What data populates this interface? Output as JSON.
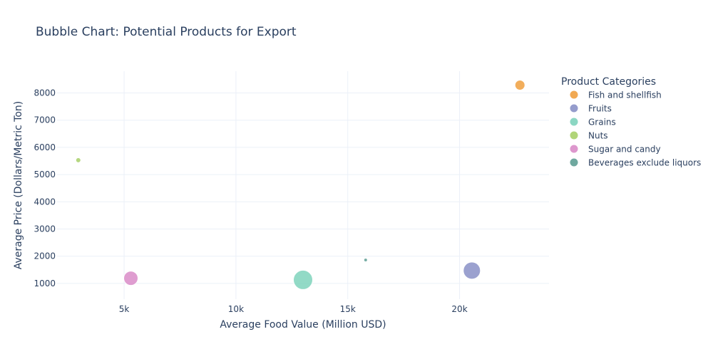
{
  "chart_data": {
    "type": "scatter",
    "title": "Bubble Chart: Potential Products for Export",
    "xlabel": "Average Food Value (Million USD)",
    "ylabel": "Average Price (Dollars/Metric Ton)",
    "xlim": [
      2000,
      24000
    ],
    "ylim": [
      420,
      8800
    ],
    "x_ticks": [
      5000,
      10000,
      15000,
      20000
    ],
    "x_tick_labels": [
      "5k",
      "10k",
      "15k",
      "20k"
    ],
    "y_ticks": [
      1000,
      2000,
      3000,
      4000,
      5000,
      6000,
      7000,
      8000
    ],
    "y_tick_labels": [
      "1000",
      "2000",
      "3000",
      "4000",
      "5000",
      "6000",
      "7000",
      "8000"
    ],
    "grid": true,
    "legend_title": "Product Categories",
    "legend_position": "right",
    "series": [
      {
        "name": "Fish and shellfish",
        "color": "#f0a040",
        "x": 22700,
        "y": 8290,
        "size": 14
      },
      {
        "name": "Fruits",
        "color": "#8a91c7",
        "x": 20550,
        "y": 1470,
        "size": 24
      },
      {
        "name": "Grains",
        "color": "#7fd3bc",
        "x": 13000,
        "y": 1130,
        "size": 27
      },
      {
        "name": "Nuts",
        "color": "#a8d06a",
        "x": 2950,
        "y": 5530,
        "size": 7
      },
      {
        "name": "Sugar and candy",
        "color": "#d98cc8",
        "x": 5300,
        "y": 1190,
        "size": 20
      },
      {
        "name": "Beverages exclude liquors",
        "color": "#5f9f95",
        "x": 15800,
        "y": 1860,
        "size": 5
      }
    ]
  }
}
